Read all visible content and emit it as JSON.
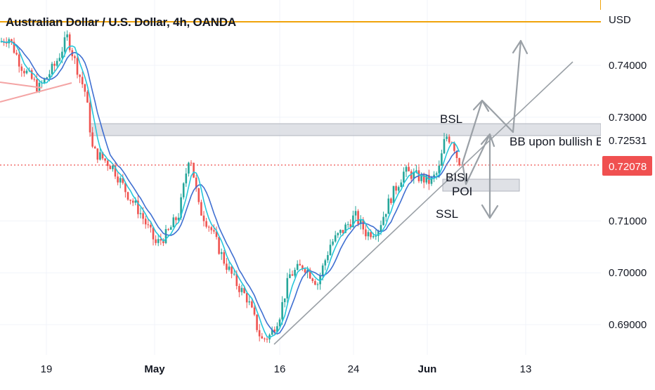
{
  "chart_data": {
    "type": "candlestick",
    "title": "Australian Dollar / U.S. Dollar, 4h, OANDA",
    "currency_label": "USD",
    "y_ticks": [
      "0.74000",
      "0.73000",
      "0.71000",
      "0.70000",
      "0.69000"
    ],
    "y_tick_values": [
      0.74,
      0.73,
      0.71,
      0.7,
      0.69
    ],
    "x_ticks": [
      {
        "label": "19",
        "bold": false
      },
      {
        "label": "May",
        "bold": true
      },
      {
        "label": "16",
        "bold": false
      },
      {
        "label": "24",
        "bold": false
      },
      {
        "label": "Jun",
        "bold": true
      },
      {
        "label": "13",
        "bold": false
      }
    ],
    "current_price": "0.72078",
    "current_price_value": 0.72078,
    "level_label": "0.72531",
    "level_value": 0.72531,
    "annotations": [
      "BSL",
      "BB upon bullish B",
      "BISI",
      "POI",
      "SSL"
    ],
    "colors": {
      "up": "#26a69a",
      "down": "#ef5350",
      "ma_fast": "#26c6da",
      "ma_slow": "#3f6fd1",
      "high_line": "#f0a30a",
      "zone": "#d1d4dc",
      "arrow": "#9aa0a6",
      "price_badge": "#f05050"
    }
  }
}
